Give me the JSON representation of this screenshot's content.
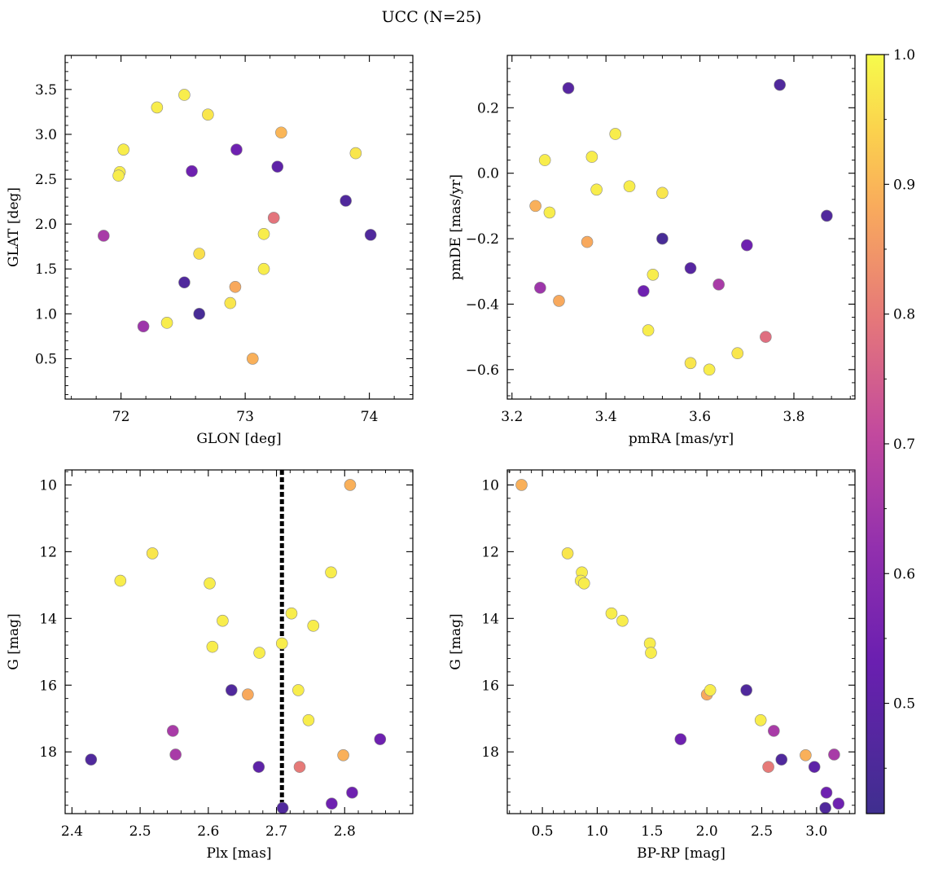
{
  "figure": {
    "title": "UCC (N=25)"
  },
  "colorbar": {
    "vmin": 0.415,
    "vmax": 1.0,
    "ticks": [
      0.5,
      0.6,
      0.7,
      0.8,
      0.9,
      1.0
    ],
    "tick_labels": [
      "0.5",
      "0.6",
      "0.7",
      "0.8",
      "0.9",
      "1.0"
    ],
    "colormap": "plasma"
  },
  "chart_data": [
    {
      "type": "scatter",
      "panel": "glon-glat",
      "title": "",
      "xlabel": "GLON [deg]",
      "ylabel": "GLAT [deg]",
      "xlim": [
        71.55,
        74.35
      ],
      "ylim": [
        0.05,
        3.88
      ],
      "y_inverted": false,
      "xticks": [
        72,
        73,
        74
      ],
      "xtick_labels": [
        "72",
        "73",
        "74"
      ],
      "yticks": [
        0.5,
        1.0,
        1.5,
        2.0,
        2.5,
        3.0,
        3.5
      ],
      "ytick_labels": [
        "0.5",
        "1.0",
        "1.5",
        "2.0",
        "2.5",
        "3.0",
        "3.5"
      ],
      "x": [
        72.51,
        72.29,
        72.7,
        73.29,
        72.02,
        71.99,
        71.98,
        73.89,
        72.93,
        72.57,
        73.26,
        73.81,
        74.01,
        73.23,
        71.86,
        73.15,
        72.63,
        73.15,
        72.51,
        72.92,
        72.88,
        72.63,
        72.37,
        72.18,
        73.06
      ],
      "y": [
        3.44,
        3.3,
        3.22,
        3.02,
        2.83,
        2.58,
        2.54,
        2.79,
        2.83,
        2.59,
        2.64,
        2.26,
        1.88,
        2.07,
        1.87,
        1.89,
        1.67,
        1.5,
        1.35,
        1.3,
        1.12,
        1.0,
        0.9,
        0.86,
        0.5
      ],
      "c": [
        0.98,
        0.98,
        0.97,
        0.9,
        0.98,
        0.98,
        0.98,
        0.97,
        0.54,
        0.54,
        0.5,
        0.46,
        0.46,
        0.79,
        0.66,
        0.98,
        0.96,
        0.98,
        0.46,
        0.88,
        0.97,
        0.44,
        0.98,
        0.64,
        0.89
      ]
    },
    {
      "type": "scatter",
      "panel": "pmra-pmde",
      "title": "",
      "xlabel": "pmRA [mas/yr]",
      "ylabel": "pmDE [mas/yr]",
      "xlim": [
        3.19,
        3.93
      ],
      "ylim": [
        -0.69,
        0.36
      ],
      "y_inverted": false,
      "xticks": [
        3.2,
        3.4,
        3.6,
        3.8
      ],
      "xtick_labels": [
        "3.2",
        "3.4",
        "3.6",
        "3.8"
      ],
      "yticks": [
        -0.6,
        -0.4,
        -0.2,
        0.0,
        0.2
      ],
      "ytick_labels": [
        "−0.6",
        "−0.4",
        "−0.2",
        "0.0",
        "0.2"
      ],
      "x": [
        3.32,
        3.77,
        3.42,
        3.37,
        3.27,
        3.45,
        3.38,
        3.52,
        3.25,
        3.28,
        3.87,
        3.36,
        3.52,
        3.7,
        3.58,
        3.5,
        3.26,
        3.48,
        3.64,
        3.3,
        3.74,
        3.49,
        3.68,
        3.58,
        3.62
      ],
      "y": [
        0.26,
        0.27,
        0.12,
        0.05,
        0.04,
        -0.04,
        -0.05,
        -0.06,
        -0.1,
        -0.12,
        -0.13,
        -0.21,
        -0.2,
        -0.22,
        -0.29,
        -0.31,
        -0.35,
        -0.36,
        -0.34,
        -0.39,
        -0.5,
        -0.48,
        -0.55,
        -0.58,
        -0.6
      ],
      "c": [
        0.48,
        0.46,
        0.98,
        0.98,
        0.98,
        0.98,
        0.98,
        0.97,
        0.89,
        0.98,
        0.46,
        0.88,
        0.44,
        0.54,
        0.48,
        0.98,
        0.64,
        0.54,
        0.66,
        0.88,
        0.78,
        0.98,
        0.97,
        0.97,
        0.98
      ]
    },
    {
      "type": "scatter",
      "panel": "plx-g",
      "title": "",
      "xlabel": "Plx [mas]",
      "ylabel": "G [mag]",
      "xlim": [
        2.39,
        2.9
      ],
      "ylim": [
        9.55,
        19.85
      ],
      "y_inverted": true,
      "xticks": [
        2.4,
        2.5,
        2.6,
        2.7,
        2.8
      ],
      "xtick_labels": [
        "2.4",
        "2.5",
        "2.6",
        "2.7",
        "2.8"
      ],
      "yticks": [
        10,
        12,
        14,
        16,
        18
      ],
      "ytick_labels": [
        "10",
        "12",
        "14",
        "16",
        "18"
      ],
      "vline": 2.708,
      "x": [
        2.808,
        2.518,
        2.471,
        2.78,
        2.602,
        2.722,
        2.621,
        2.754,
        2.606,
        2.675,
        2.708,
        2.634,
        2.658,
        2.732,
        2.747,
        2.548,
        2.852,
        2.428,
        2.552,
        2.798,
        2.674,
        2.734,
        2.811,
        2.781,
        2.709
      ],
      "y": [
        10.0,
        12.05,
        12.87,
        12.62,
        12.95,
        13.85,
        14.07,
        14.22,
        14.85,
        15.03,
        14.75,
        16.15,
        16.28,
        16.15,
        17.05,
        17.37,
        17.62,
        18.23,
        18.08,
        18.1,
        18.45,
        18.45,
        19.22,
        19.55,
        19.68
      ],
      "c": [
        0.89,
        0.97,
        0.98,
        0.98,
        0.98,
        0.98,
        0.98,
        0.98,
        0.98,
        0.98,
        0.98,
        0.46,
        0.88,
        0.98,
        0.98,
        0.66,
        0.54,
        0.46,
        0.66,
        0.89,
        0.5,
        0.8,
        0.54,
        0.54,
        0.46
      ]
    },
    {
      "type": "scatter",
      "panel": "bprp-g",
      "title": "",
      "xlabel": "BP-RP [mag]",
      "ylabel": "G [mag]",
      "xlim": [
        0.18,
        3.35
      ],
      "ylim": [
        9.55,
        19.85
      ],
      "y_inverted": true,
      "xticks": [
        0.5,
        1.0,
        1.5,
        2.0,
        2.5,
        3.0
      ],
      "xtick_labels": [
        "0.5",
        "1.0",
        "1.5",
        "2.0",
        "2.5",
        "3.0"
      ],
      "yticks": [
        10,
        12,
        14,
        16,
        18
      ],
      "ytick_labels": [
        "10",
        "12",
        "14",
        "16",
        "18"
      ],
      "x": [
        0.31,
        0.73,
        0.86,
        0.85,
        0.88,
        1.13,
        1.23,
        1.48,
        1.49,
        2.0,
        2.03,
        2.36,
        2.49,
        2.61,
        1.76,
        2.9,
        3.16,
        2.68,
        2.56,
        2.98,
        3.09,
        3.2,
        3.08
      ],
      "y": [
        10.0,
        12.05,
        12.62,
        12.87,
        12.95,
        13.85,
        14.07,
        14.75,
        15.03,
        16.28,
        16.15,
        16.15,
        17.05,
        17.37,
        17.62,
        18.1,
        18.08,
        18.23,
        18.45,
        18.45,
        19.22,
        19.55,
        19.68
      ],
      "c": [
        0.89,
        0.97,
        0.98,
        0.98,
        0.98,
        0.98,
        0.98,
        0.98,
        0.98,
        0.88,
        0.98,
        0.46,
        0.98,
        0.66,
        0.54,
        0.89,
        0.66,
        0.46,
        0.8,
        0.5,
        0.54,
        0.54,
        0.46
      ]
    }
  ]
}
